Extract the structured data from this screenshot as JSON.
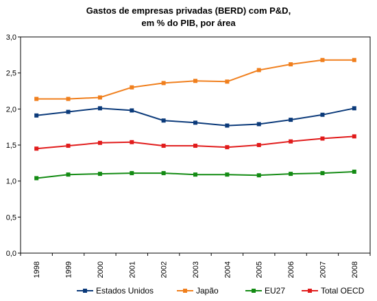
{
  "chart_data": {
    "type": "line",
    "title_lines": [
      "Gastos de empresas privadas (BERD) com P&D,",
      "em % do PIB, por área"
    ],
    "xlabel": "",
    "ylabel": "",
    "categories": [
      "1998",
      "1999",
      "2000",
      "2001",
      "2002",
      "2003",
      "2004",
      "2005",
      "2006",
      "2007",
      "2008"
    ],
    "ylim": [
      0,
      3
    ],
    "yticks": [
      "0,0",
      "0,5",
      "1,0",
      "1,5",
      "2,0",
      "2,5",
      "3,0"
    ],
    "ytick_values": [
      0,
      0.5,
      1.0,
      1.5,
      2.0,
      2.5,
      3.0
    ],
    "grid": false,
    "legend_position": "bottom",
    "series": [
      {
        "name": "Estados Unidos",
        "color": "#0b3a7a",
        "values": [
          1.91,
          1.96,
          2.01,
          1.98,
          1.84,
          1.81,
          1.77,
          1.79,
          1.85,
          1.92,
          2.01
        ]
      },
      {
        "name": "Japão",
        "color": "#f07f1d",
        "values": [
          2.14,
          2.14,
          2.16,
          2.3,
          2.36,
          2.39,
          2.38,
          2.54,
          2.62,
          2.68,
          2.68
        ]
      },
      {
        "name": "EU27",
        "color": "#138b13",
        "values": [
          1.04,
          1.09,
          1.1,
          1.11,
          1.11,
          1.09,
          1.09,
          1.08,
          1.1,
          1.11,
          1.13
        ]
      },
      {
        "name": "Total OECD",
        "color": "#e11b1b",
        "values": [
          1.45,
          1.49,
          1.53,
          1.54,
          1.49,
          1.49,
          1.47,
          1.5,
          1.55,
          1.59,
          1.62
        ]
      }
    ]
  }
}
